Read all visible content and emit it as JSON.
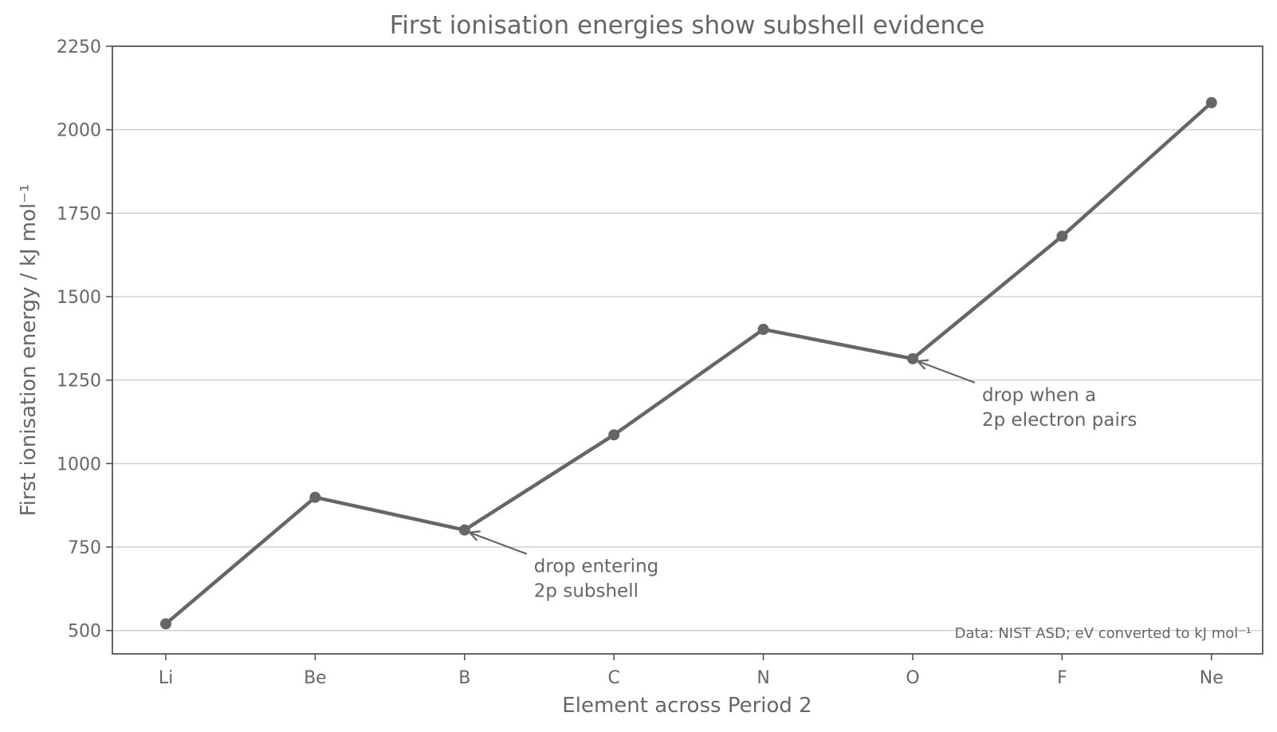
{
  "chart_data": {
    "type": "line",
    "title": "First ionisation energies show subshell evidence",
    "xlabel": "Element across Period 2",
    "ylabel": "First ionisation energy / kJ mol⁻¹",
    "categories": [
      "Li",
      "Be",
      "B",
      "C",
      "N",
      "O",
      "F",
      "Ne"
    ],
    "series": [
      {
        "values": [
          520,
          899,
          801,
          1086,
          1402,
          1314,
          1681,
          2081
        ]
      }
    ],
    "ylim": [
      430,
      2250
    ],
    "yticks": [
      500,
      750,
      1000,
      1250,
      1500,
      1750,
      2000,
      2250
    ],
    "grid": "horizontal",
    "color": "#666666",
    "annotations": [
      {
        "target": "B",
        "lines": [
          "drop entering",
          "2p subshell"
        ]
      },
      {
        "target": "O",
        "lines": [
          "drop when a",
          "2p electron pairs"
        ]
      }
    ],
    "source_note": "Data: NIST ASD; eV converted to kJ mol⁻¹"
  }
}
